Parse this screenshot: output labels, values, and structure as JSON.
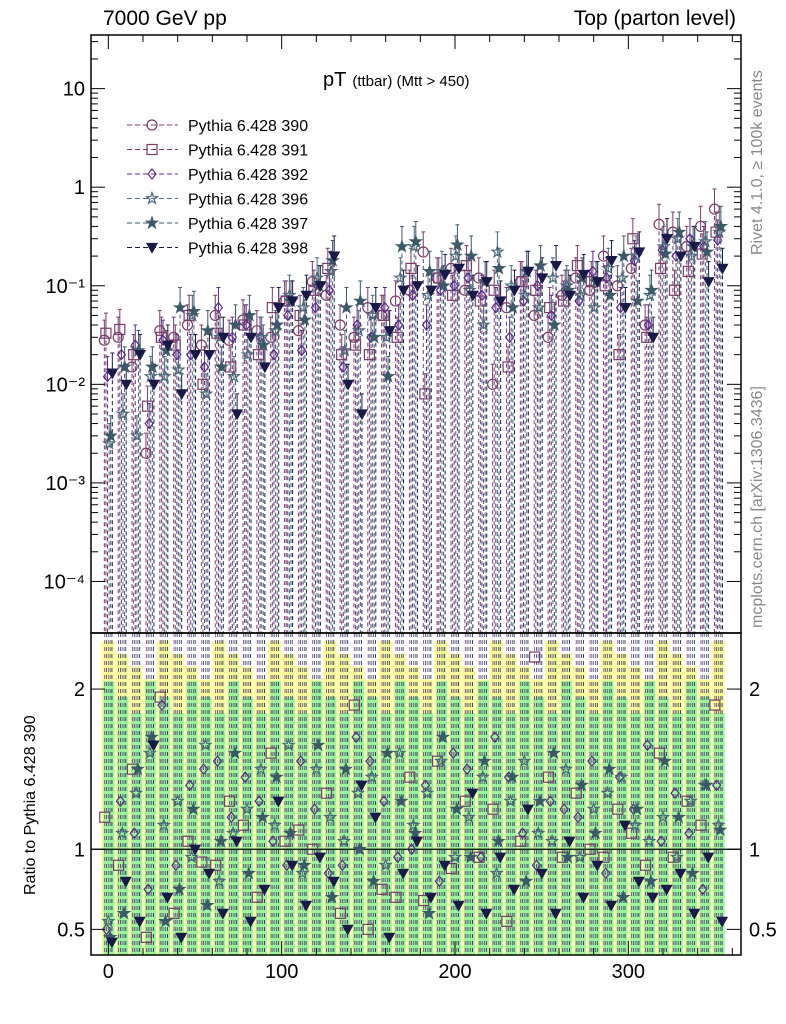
{
  "header": {
    "left": "7000 GeV pp",
    "right": "Top (parton level)"
  },
  "side_labels": {
    "rivet": "Rivet 4.1.0, ≥ 100k events",
    "mcplots": "mcplots.cern.ch [arXiv:1306.3436]"
  },
  "chart_data": [
    {
      "type": "scatter",
      "panel": "main",
      "title_main": "pT",
      "title_sub": "(ttbar) (Mtt > 450)",
      "yscale": "log",
      "ylim": [
        3e-05,
        35
      ],
      "xlim": [
        -10,
        365
      ],
      "y_ticks": [
        {
          "value": 10,
          "label": "10"
        },
        {
          "value": 1,
          "label": "1"
        },
        {
          "value": 0.1,
          "label": "10⁻¹"
        },
        {
          "value": 0.01,
          "label": "10⁻²"
        },
        {
          "value": 0.001,
          "label": "10⁻³"
        },
        {
          "value": 0.0001,
          "label": "10⁻⁴"
        }
      ],
      "x": [
        0,
        8,
        16,
        24,
        32,
        40,
        48,
        56,
        64,
        72,
        80,
        88,
        96,
        104,
        112,
        120,
        128,
        136,
        144,
        152,
        160,
        168,
        176,
        184,
        192,
        200,
        208,
        216,
        224,
        232,
        240,
        248,
        256,
        264,
        272,
        280,
        288,
        296,
        304,
        312,
        320,
        328,
        336,
        344,
        352
      ],
      "series": [
        {
          "name": "Pythia 6.428 390",
          "marker": "circle-open",
          "color": "#7a3b6b",
          "values": [
            0.028,
            0.03,
            0.015,
            0.002,
            0.035,
            0.03,
            0.04,
            0.025,
            0.05,
            0.028,
            0.045,
            0.035,
            0.03,
            0.07,
            0.035,
            0.11,
            0.08,
            0.04,
            0.03,
            0.06,
            0.05,
            0.07,
            0.09,
            0.22,
            0.12,
            0.15,
            0.09,
            0.12,
            0.01,
            0.06,
            0.11,
            0.05,
            0.03,
            0.08,
            0.12,
            0.09,
            0.2,
            0.1,
            0.15,
            0.04,
            0.42,
            0.35,
            0.25,
            0.4,
            0.6
          ]
        },
        {
          "name": "Pythia 6.428 391",
          "marker": "square-open",
          "color": "#7a3b6b",
          "values": [
            0.033,
            0.036,
            0.02,
            0.006,
            0.03,
            0.025,
            0.05,
            0.01,
            0.033,
            0.015,
            0.04,
            0.02,
            0.06,
            0.07,
            0.05,
            0.09,
            0.15,
            0.02,
            0.025,
            0.02,
            0.05,
            0.03,
            0.15,
            0.008,
            0.12,
            0.08,
            0.16,
            0.07,
            0.09,
            0.015,
            0.11,
            0.09,
            0.06,
            0.07,
            0.16,
            0.11,
            0.1,
            0.02,
            0.3,
            0.03,
            0.15,
            0.09,
            0.14,
            0.21,
            0.35
          ]
        },
        {
          "name": "Pythia 6.428 392",
          "marker": "diamond-open",
          "color": "#5a2a8c",
          "values": [
            0.012,
            0.02,
            0.025,
            0.004,
            0.028,
            0.02,
            0.02,
            0.015,
            0.06,
            0.03,
            0.04,
            0.03,
            0.02,
            0.05,
            0.022,
            0.06,
            0.09,
            0.015,
            0.04,
            0.03,
            0.06,
            0.04,
            0.08,
            0.04,
            0.09,
            0.1,
            0.12,
            0.08,
            0.06,
            0.03,
            0.07,
            0.1,
            0.05,
            0.09,
            0.07,
            0.14,
            0.12,
            0.06,
            0.18,
            0.04,
            0.23,
            0.2,
            0.3,
            0.25,
            0.29
          ]
        },
        {
          "name": "Pythia 6.428 396",
          "marker": "star-open",
          "color": "#4a6a7a",
          "values": [
            0.0025,
            0.005,
            0.003,
            0.012,
            0.012,
            0.014,
            0.05,
            0.008,
            0.03,
            0.012,
            0.02,
            0.03,
            0.035,
            0.08,
            0.06,
            0.12,
            0.14,
            0.022,
            0.035,
            0.05,
            0.03,
            0.12,
            0.25,
            0.08,
            0.14,
            0.2,
            0.09,
            0.04,
            0.22,
            0.1,
            0.08,
            0.06,
            0.12,
            0.1,
            0.08,
            0.06,
            0.15,
            0.12,
            0.2,
            0.08,
            0.25,
            0.3,
            0.2,
            0.28,
            0.35
          ]
        },
        {
          "name": "Pythia 6.428 397",
          "marker": "star-filled",
          "color": "#3a5a6a",
          "values": [
            0.003,
            0.015,
            0.022,
            0.015,
            0.022,
            0.06,
            0.055,
            0.035,
            0.015,
            0.04,
            0.05,
            0.025,
            0.04,
            0.07,
            0.045,
            0.1,
            0.18,
            0.06,
            0.07,
            0.03,
            0.012,
            0.25,
            0.28,
            0.14,
            0.1,
            0.26,
            0.2,
            0.11,
            0.15,
            0.06,
            0.14,
            0.16,
            0.04,
            0.09,
            0.12,
            0.11,
            0.08,
            0.2,
            0.07,
            0.09,
            0.21,
            0.35,
            0.25,
            0.22,
            0.4
          ]
        },
        {
          "name": "Pythia 6.428 398",
          "marker": "triangle-down-filled",
          "color": "#1a1a4a",
          "values": [
            0.013,
            0.01,
            0.02,
            0.01,
            0.025,
            0.008,
            0.02,
            0.02,
            0.03,
            0.005,
            0.03,
            0.015,
            0.06,
            0.07,
            0.08,
            0.1,
            0.2,
            0.01,
            0.005,
            0.06,
            0.035,
            0.09,
            0.1,
            0.09,
            0.13,
            0.15,
            0.08,
            0.11,
            0.07,
            0.09,
            0.14,
            0.12,
            0.16,
            0.08,
            0.13,
            0.11,
            0.18,
            0.06,
            0.22,
            0.03,
            0.3,
            0.2,
            0.25,
            0.11,
            0.15
          ]
        }
      ]
    },
    {
      "type": "scatter",
      "panel": "ratio",
      "ylabel": "Ratio to Pythia 6.428 390",
      "ylim": [
        0.34,
        2.35
      ],
      "y_ticks": [
        {
          "value": 2,
          "label": "2"
        },
        {
          "value": 1,
          "label": "1"
        },
        {
          "value": 0.5,
          "label": "0.5"
        }
      ],
      "x_ticks": [
        {
          "value": 0,
          "label": "0"
        },
        {
          "value": 100,
          "label": "100"
        },
        {
          "value": 200,
          "label": "200"
        },
        {
          "value": 300,
          "label": "300"
        }
      ],
      "reference": 1,
      "x": [
        0,
        8,
        16,
        24,
        32,
        40,
        48,
        56,
        64,
        72,
        80,
        88,
        96,
        104,
        112,
        120,
        128,
        136,
        144,
        152,
        160,
        168,
        176,
        184,
        192,
        200,
        208,
        216,
        224,
        232,
        240,
        248,
        256,
        264,
        272,
        280,
        288,
        296,
        304,
        312,
        320,
        328,
        336,
        344,
        352
      ],
      "series": [
        {
          "name": "Pythia 6.428 391",
          "values": [
            1.2,
            0.9,
            1.5,
            0.45,
            1.95,
            0.6,
            1.05,
            0.92,
            0.9,
            1.3,
            1.15,
            0.7,
            1.6,
            1.05,
            1.12,
            1.0,
            1.35,
            0.6,
            1.9,
            0.5,
            0.75,
            0.7,
            1.45,
            0.68,
            1.55,
            0.88,
            1.3,
            0.95,
            1.25,
            0.55,
            1.05,
            2.2,
            1.45,
            0.95,
            1.35,
            1.0,
            0.95,
            1.25,
            1.1,
            0.9,
            1.6,
            0.95,
            1.3,
            1.15,
            1.9
          ]
        },
        {
          "name": "Pythia 6.428 392",
          "values": [
            0.5,
            1.3,
            1.1,
            0.75,
            1.9,
            0.9,
            1.4,
            1.5,
            1.55,
            1.2,
            1.45,
            1.3,
            1.05,
            0.9,
            1.55,
            1.25,
            0.85,
            0.9,
            1.7,
            1.55,
            1.3,
            0.95,
            1.0,
            1.4,
            0.8,
            1.6,
            1.5,
            0.95,
            1.7,
            1.45,
            1.1,
            0.9,
            1.3,
            1.25,
            1.2,
            1.55,
            0.85,
            1.45,
            1.25,
            1.65,
            1.05,
            1.35,
            1.1,
            0.75,
            1.4
          ]
        },
        {
          "name": "Pythia 6.428 396",
          "values": [
            0.55,
            1.1,
            1.35,
            1.6,
            1.15,
            1.3,
            0.95,
            1.65,
            0.8,
            1.1,
            1.25,
            1.5,
            1.15,
            1.65,
            0.85,
            1.5,
            1.2,
            1.05,
            1.35,
            1.45,
            0.9,
            1.6,
            1.15,
            1.35,
            1.55,
            0.95,
            1.2,
            1.45,
            0.85,
            1.3,
            1.55,
            1.1,
            1.05,
            1.5,
            0.95,
            1.25,
            1.35,
            1.45,
            1.15,
            1.05,
            1.2,
            0.95,
            1.3,
            1.4,
            1.15
          ]
        },
        {
          "name": "Pythia 6.428 397",
          "values": [
            0.45,
            0.6,
            1.5,
            1.7,
            0.55,
            0.75,
            1.25,
            0.65,
            1.05,
            1.6,
            0.85,
            1.2,
            1.45,
            1.1,
            0.9,
            1.65,
            0.7,
            1.5,
            1.0,
            0.8,
            1.6,
            1.3,
            1.1,
            0.6,
            1.7,
            1.25,
            0.95,
            1.55,
            1.05,
            1.45,
            0.8,
            1.3,
            1.6,
            0.95,
            1.4,
            1.1,
            1.5,
            0.7,
            1.25,
            0.8,
            1.55,
            1.2,
            0.85,
            1.4,
            1.12
          ]
        },
        {
          "name": "Pythia 6.428 398",
          "values": [
            0.42,
            0.8,
            0.55,
            1.65,
            0.7,
            0.45,
            1.0,
            0.85,
            0.6,
            1.05,
            0.55,
            0.75,
            1.3,
            0.9,
            0.65,
            0.95,
            0.8,
            0.5,
            1.4,
            1.2,
            0.45,
            0.85,
            1.05,
            0.7,
            0.9,
            0.65,
            1.35,
            0.6,
            0.95,
            0.75,
            1.25,
            0.85,
            0.6,
            1.05,
            0.7,
            0.9,
            0.65,
            1.15,
            0.8,
            0.7,
            0.75,
            0.85,
            0.6,
            0.95,
            0.55
          ]
        }
      ]
    }
  ]
}
